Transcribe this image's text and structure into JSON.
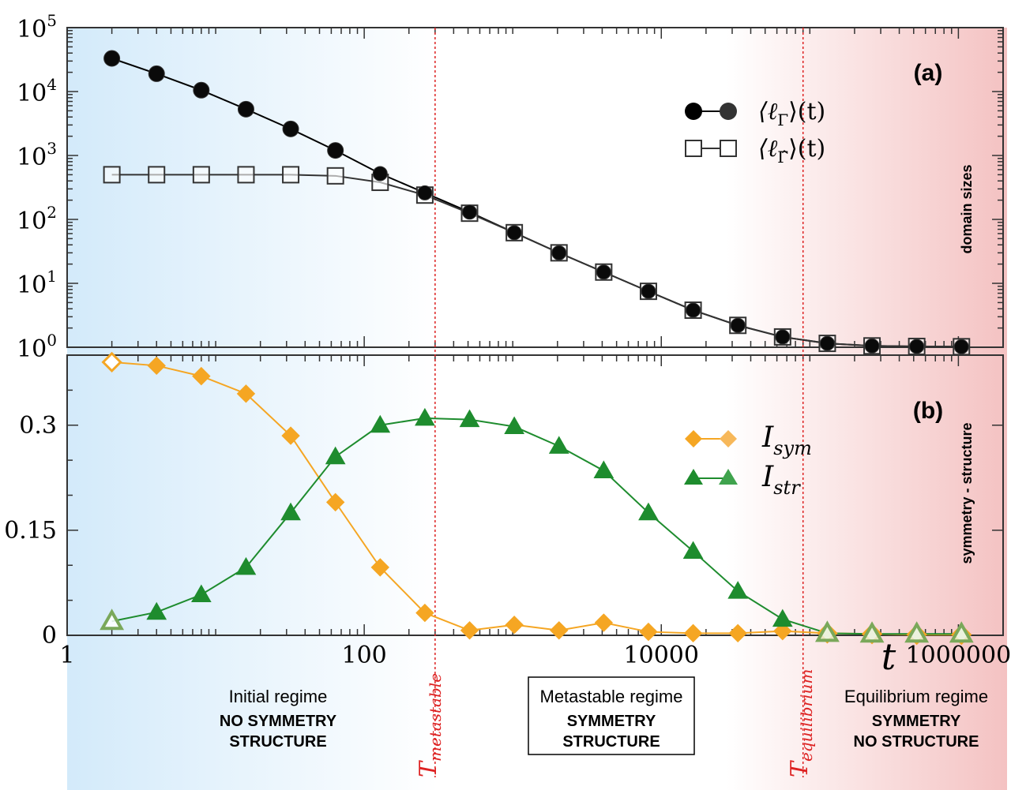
{
  "chart_data": [
    {
      "panel": "(a)",
      "type": "line",
      "xscale": "log",
      "yscale": "log",
      "ylim": [
        1,
        100000
      ],
      "ylabel": "domain sizes",
      "yticks": [
        {
          "value": 1,
          "base": "10",
          "exp": "0"
        },
        {
          "value": 10,
          "base": "10",
          "exp": "1"
        },
        {
          "value": 100,
          "base": "10",
          "exp": "2"
        },
        {
          "value": 1000,
          "base": "10",
          "exp": "3"
        },
        {
          "value": 10000,
          "base": "10",
          "exp": "4"
        },
        {
          "value": 100000,
          "base": "10",
          "exp": "5"
        }
      ],
      "series": [
        {
          "name": "⟨ℓΓ⟩(t)",
          "legend_main": "⟨ℓ",
          "legend_sub": "Γ",
          "legend_tail": "⟩(t)",
          "marker": "filled-circle",
          "color": "#000000",
          "x": [
            2,
            4,
            8,
            16,
            32,
            64,
            128,
            256,
            512,
            1024,
            2048,
            4096,
            8192,
            16384,
            32768,
            65536,
            131072,
            262144,
            524288,
            1048576
          ],
          "y": [
            33000,
            19000,
            10500,
            5300,
            2600,
            1200,
            520,
            260,
            130,
            62,
            30,
            15,
            7.5,
            3.8,
            2.2,
            1.45,
            1.15,
            1.05,
            1.03,
            1.02
          ]
        },
        {
          "name": "⟨ℓΓ̂⟩(t)",
          "legend_main": "⟨ℓ",
          "legend_sub": "Γ̂",
          "legend_tail": "⟩(t)",
          "marker": "open-square",
          "color": "#333333",
          "x": [
            2,
            4,
            8,
            16,
            32,
            64,
            128,
            256,
            512,
            1024,
            2048,
            4096,
            8192,
            16384,
            32768,
            65536,
            131072,
            262144,
            524288,
            1048576
          ],
          "y": [
            500,
            500,
            500,
            500,
            500,
            480,
            380,
            240,
            125,
            62,
            30,
            15,
            7.5,
            3.8,
            2.2,
            1.45,
            1.15,
            1.05,
            1.03,
            1.02
          ]
        }
      ]
    },
    {
      "panel": "(b)",
      "type": "line",
      "xscale": "log",
      "yscale": "linear",
      "ylim": [
        0,
        0.4
      ],
      "xlim": [
        1,
        2000000
      ],
      "xlabel": "t",
      "ylabel": "symmetry - structure",
      "yticks": [
        {
          "value": 0,
          "label": "0"
        },
        {
          "value": 0.15,
          "label": "0.15"
        },
        {
          "value": 0.3,
          "label": "0.3"
        }
      ],
      "xticks": [
        {
          "value": 1,
          "label": "1"
        },
        {
          "value": 100,
          "label": "100"
        },
        {
          "value": 10000,
          "label": "10000"
        },
        {
          "value": 1000000,
          "label": "1000000"
        }
      ],
      "series": [
        {
          "name": "I_sym",
          "legend_main": "I",
          "legend_sub": "sym",
          "marker": "diamond",
          "color": "#f5a623",
          "x": [
            2,
            4,
            8,
            16,
            32,
            64,
            128,
            256,
            512,
            1024,
            2048,
            4096,
            8192,
            16384,
            32768,
            65536,
            131072,
            262144,
            524288,
            1048576
          ],
          "y": [
            0.39,
            0.385,
            0.37,
            0.345,
            0.285,
            0.19,
            0.097,
            0.032,
            0.007,
            0.015,
            0.007,
            0.018,
            0.005,
            0.003,
            0.003,
            0.006,
            0.003,
            0.002,
            0.001,
            0.001
          ],
          "open_markers_at": [
            2,
            131072,
            262144,
            524288,
            1048576
          ]
        },
        {
          "name": "I_str",
          "legend_main": "I",
          "legend_sub": "str",
          "marker": "triangle",
          "color": "#1e8c2e",
          "x": [
            2,
            4,
            8,
            16,
            32,
            64,
            128,
            256,
            512,
            1024,
            2048,
            4096,
            8192,
            16384,
            32768,
            65536,
            131072,
            262144,
            524288,
            1048576
          ],
          "y": [
            0.02,
            0.033,
            0.058,
            0.097,
            0.175,
            0.255,
            0.3,
            0.31,
            0.308,
            0.298,
            0.27,
            0.235,
            0.175,
            0.12,
            0.063,
            0.023,
            0.003,
            0.002,
            0.002,
            0.002
          ],
          "open_markers_at": [
            2,
            131072,
            262144,
            524288,
            1048576
          ]
        }
      ]
    }
  ],
  "thresholds": [
    {
      "label_main": "T",
      "label_sub": "metastable",
      "t": 300
    },
    {
      "label_main": "T",
      "label_sub": "equilibrium",
      "t": 90000
    }
  ],
  "regimes": [
    {
      "title": "Initial regime",
      "line1": "NO SYMMETRY",
      "line2": "STRUCTURE",
      "boxed": false
    },
    {
      "title": "Metastable regime",
      "line1": "SYMMETRY",
      "line2": "STRUCTURE",
      "boxed": true
    },
    {
      "title": "Equilibrium regime",
      "line1": "SYMMETRY",
      "line2": "NO STRUCTURE",
      "boxed": false
    }
  ],
  "colors": {
    "initial_bg": "#d6ecfb",
    "equilibrium_bg": "#f6caca",
    "threshold": "#dd2222",
    "sym": "#f5a623",
    "str": "#1e8c2e"
  }
}
